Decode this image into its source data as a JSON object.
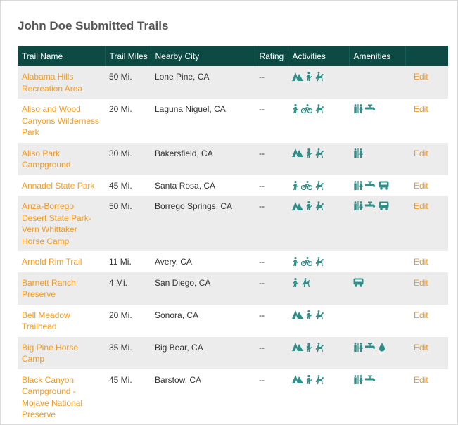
{
  "page": {
    "title": "John Doe Submitted Trails"
  },
  "colors": {
    "header_bg": "#0d4a44",
    "link": "#f39a1f",
    "icon": "#2f8f88",
    "row_alt": "#ececec"
  },
  "columns": [
    "Trail Name",
    "Trail Miles",
    "Nearby City",
    "Rating",
    "Activities",
    "Amenities",
    ""
  ],
  "edit_label": "Edit",
  "rows": [
    {
      "name": "Alabama Hills Recreation Area",
      "miles": "50 Mi.",
      "city": "Lone Pine, CA",
      "rating": "--",
      "activities": [
        "camping-icon",
        "hiking-icon",
        "horseback-icon"
      ],
      "amenities": []
    },
    {
      "name": "Aliso and Wood Canyons Wilderness Park",
      "miles": "20 Mi.",
      "city": "Laguna Niguel, CA",
      "rating": "--",
      "activities": [
        "hiking-icon",
        "biking-icon",
        "horseback-icon"
      ],
      "amenities": [
        "restroom-icon",
        "water-faucet-icon"
      ]
    },
    {
      "name": "Aliso Park Campground",
      "miles": "30 Mi.",
      "city": "Bakersfield, CA",
      "rating": "--",
      "activities": [
        "camping-icon",
        "hiking-icon",
        "horseback-icon"
      ],
      "amenities": [
        "restroom-icon"
      ]
    },
    {
      "name": "Annadel State Park",
      "miles": "45 Mi.",
      "city": "Santa Rosa, CA",
      "rating": "--",
      "activities": [
        "hiking-icon",
        "biking-icon",
        "horseback-icon"
      ],
      "amenities": [
        "restroom-icon",
        "water-faucet-icon",
        "trailer-icon"
      ]
    },
    {
      "name": "Anza-Borrego Desert State Park- Vern Whittaker Horse Camp",
      "miles": "50 Mi.",
      "city": "Borrego Springs, CA",
      "rating": "--",
      "activities": [
        "camping-icon",
        "hiking-icon",
        "horseback-icon"
      ],
      "amenities": [
        "restroom-icon",
        "water-faucet-icon",
        "trailer-icon"
      ]
    },
    {
      "name": "Arnold Rim Trail",
      "miles": "11 Mi.",
      "city": "Avery, CA",
      "rating": "--",
      "activities": [
        "hiking-icon",
        "biking-icon",
        "horseback-icon"
      ],
      "amenities": []
    },
    {
      "name": "Barnett Ranch Preserve",
      "miles": "4 Mi.",
      "city": "San Diego, CA",
      "rating": "--",
      "activities": [
        "hiking-icon",
        "horseback-icon"
      ],
      "amenities": [
        "trailer-icon"
      ]
    },
    {
      "name": "Bell Meadow Trailhead",
      "miles": "20 Mi.",
      "city": "Sonora, CA",
      "rating": "--",
      "activities": [
        "camping-icon",
        "hiking-icon",
        "horseback-icon"
      ],
      "amenities": []
    },
    {
      "name": "Big Pine Horse Camp",
      "miles": "35 Mi.",
      "city": "Big Bear, CA",
      "rating": "--",
      "activities": [
        "camping-icon",
        "hiking-icon",
        "horseback-icon"
      ],
      "amenities": [
        "restroom-icon",
        "water-faucet-icon",
        "water-drop-icon"
      ]
    },
    {
      "name": "Black Canyon Campground - Mojave National Preserve",
      "miles": "45 Mi.",
      "city": "Barstow, CA",
      "rating": "--",
      "activities": [
        "camping-icon",
        "hiking-icon",
        "horseback-icon"
      ],
      "amenities": [
        "restroom-icon",
        "water-faucet-icon"
      ]
    }
  ]
}
